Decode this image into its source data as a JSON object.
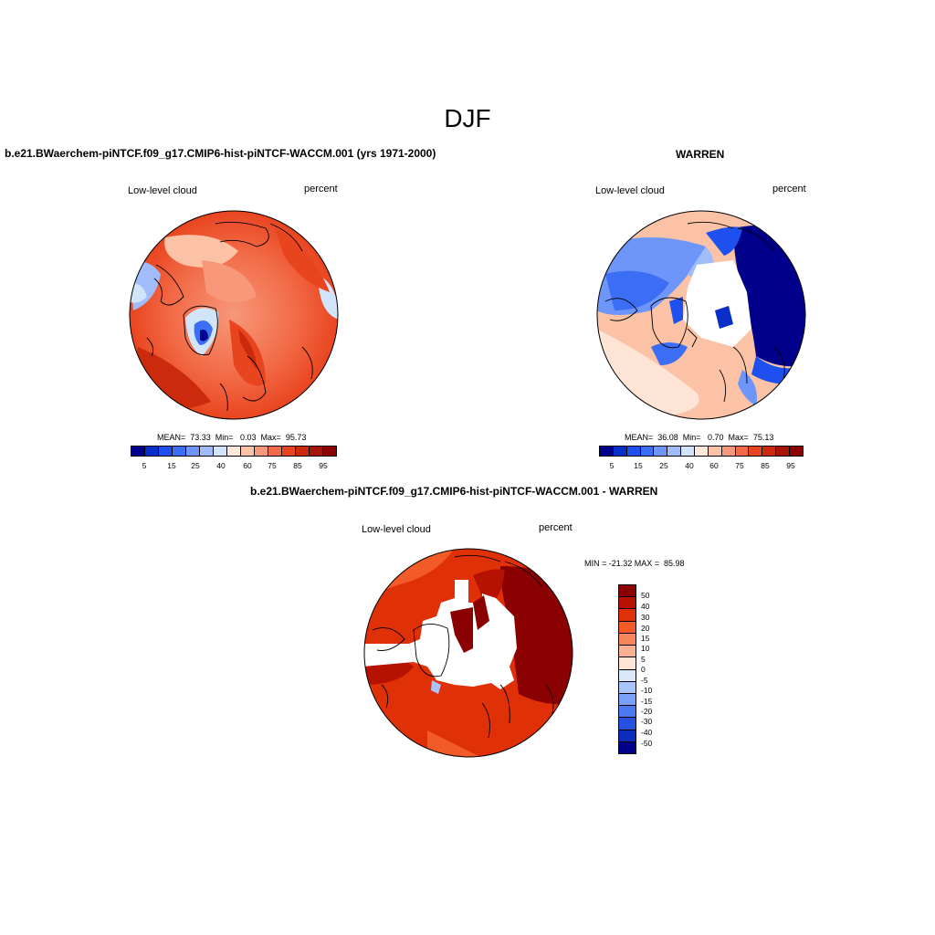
{
  "main_title": "DJF",
  "palette_levels": [
    "#00008b",
    "#0a2fc8",
    "#1e50f0",
    "#3c6ef5",
    "#6e96fa",
    "#a0bcfa",
    "#d2e4fa",
    "#ffe8dc",
    "#fbc2a6",
    "#f7987a",
    "#f26a46",
    "#e8441e",
    "#cc2a0c",
    "#a8140a",
    "#8b0000"
  ],
  "diff_palette": [
    "#8b0000",
    "#b61202",
    "#e03008",
    "#f25a28",
    "#f7875a",
    "#fbb094",
    "#fde4d4",
    "#d8e8f8",
    "#a8c4fa",
    "#7aa0fa",
    "#4c78f2",
    "#2650e0",
    "#0c2cbc",
    "#00008b"
  ],
  "panels": [
    {
      "title": "b.e21.BWaerchem-piNTCF.f09_g17.CMIP6-hist-piNTCF-WACCM.001 (yrs 1971-2000)",
      "variable": "Low-level cloud",
      "units": "percent",
      "stats": "MEAN=  73.33  Min=   0.03  Max=  95.73",
      "colorbar_labels": [
        "5",
        "15",
        "25",
        "40",
        "60",
        "75",
        "85",
        "95"
      ]
    },
    {
      "title": "WARREN",
      "variable": "Low-level cloud",
      "units": "percent",
      "stats": "MEAN=  36.08  Min=   0.70  Max=  75.13",
      "colorbar_labels": [
        "5",
        "15",
        "25",
        "40",
        "60",
        "75",
        "85",
        "95"
      ]
    },
    {
      "title": "b.e21.BWaerchem-piNTCF.f09_g17.CMIP6-hist-piNTCF-WACCM.001 - WARREN",
      "variable": "Low-level cloud",
      "units": "percent",
      "stats": "MIN = -21.32 MAX =  85.98",
      "colorbar_labels": [
        "50",
        "40",
        "30",
        "20",
        "15",
        "10",
        "5",
        "0",
        "-5",
        "-10",
        "-15",
        "-20",
        "-30",
        "-40",
        "-50"
      ]
    }
  ]
}
